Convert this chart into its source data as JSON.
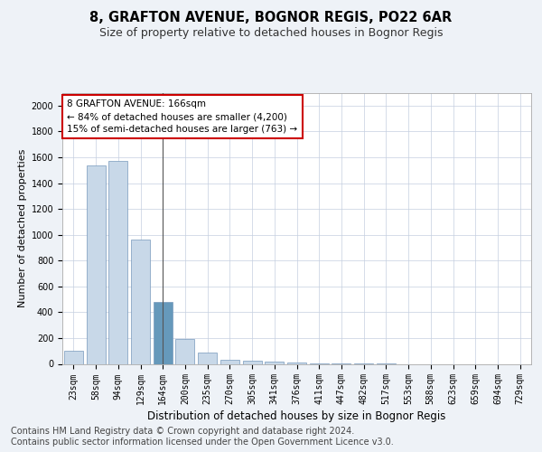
{
  "title_line1": "8, GRAFTON AVENUE, BOGNOR REGIS, PO22 6AR",
  "title_line2": "Size of property relative to detached houses in Bognor Regis",
  "xlabel": "Distribution of detached houses by size in Bognor Regis",
  "ylabel": "Number of detached properties",
  "categories": [
    "23sqm",
    "58sqm",
    "94sqm",
    "129sqm",
    "164sqm",
    "200sqm",
    "235sqm",
    "270sqm",
    "305sqm",
    "341sqm",
    "376sqm",
    "411sqm",
    "447sqm",
    "482sqm",
    "517sqm",
    "553sqm",
    "588sqm",
    "623sqm",
    "659sqm",
    "694sqm",
    "729sqm"
  ],
  "values": [
    100,
    1540,
    1570,
    960,
    480,
    190,
    85,
    35,
    25,
    15,
    10,
    5,
    3,
    2,
    1,
    0,
    0,
    0,
    0,
    0,
    0
  ],
  "bar_color_normal": "#c8d8e8",
  "bar_color_highlight": "#6699bb",
  "bar_edge_color": "#7799bb",
  "highlight_index": 4,
  "vline_x": 4,
  "annotation_box_text": "8 GRAFTON AVENUE: 166sqm\n← 84% of detached houses are smaller (4,200)\n15% of semi-detached houses are larger (763) →",
  "annotation_box_color": "#cc0000",
  "ylim": [
    0,
    2100
  ],
  "yticks": [
    0,
    200,
    400,
    600,
    800,
    1000,
    1200,
    1400,
    1600,
    1800,
    2000
  ],
  "footer_line1": "Contains HM Land Registry data © Crown copyright and database right 2024.",
  "footer_line2": "Contains public sector information licensed under the Open Government Licence v3.0.",
  "background_color": "#eef2f7",
  "plot_bg_color": "#ffffff",
  "title_fontsize": 10.5,
  "subtitle_fontsize": 9,
  "xlabel_fontsize": 8.5,
  "ylabel_fontsize": 8,
  "tick_fontsize": 7,
  "footer_fontsize": 7,
  "ann_fontsize": 7.5
}
